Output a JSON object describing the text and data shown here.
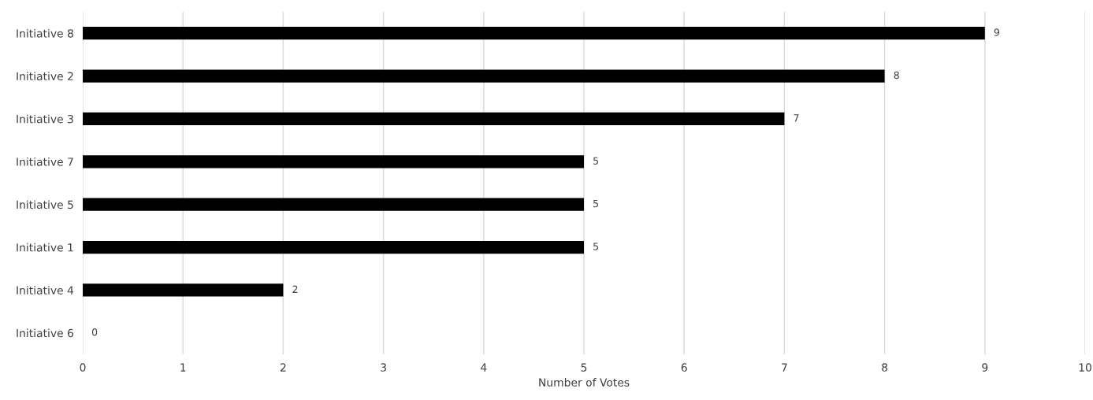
{
  "chart_data": {
    "type": "bar",
    "orientation": "horizontal",
    "categories": [
      "Initiative 8",
      "Initiative 2",
      "Initiative 3",
      "Initiative 7",
      "Initiative 5",
      "Initiative 1",
      "Initiative 4",
      "Initiative 6"
    ],
    "values": [
      9,
      8,
      7,
      5,
      5,
      5,
      2,
      0
    ],
    "color": "#000000",
    "xlabel": "Number of Votes",
    "xlim": [
      0,
      10
    ],
    "xticks": [
      0,
      1,
      2,
      3,
      4,
      5,
      6,
      7,
      8,
      9,
      10
    ],
    "grid": "x",
    "data_labels": true,
    "legend": false
  }
}
